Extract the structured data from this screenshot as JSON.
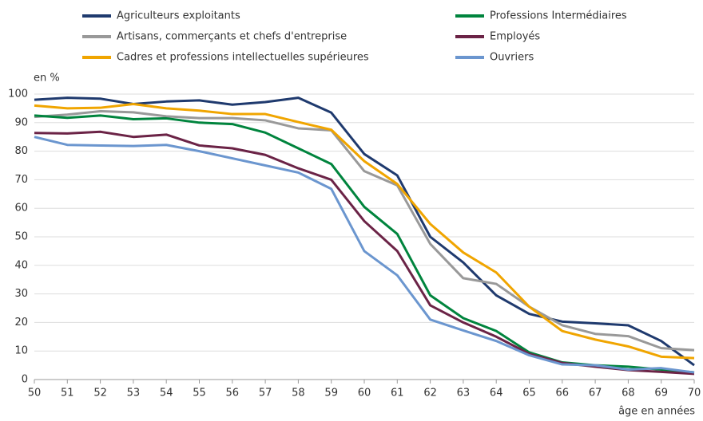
{
  "chart_data": {
    "type": "line",
    "y_label": "en %",
    "x_label": "âge en années",
    "x": [
      50,
      51,
      52,
      53,
      54,
      55,
      56,
      57,
      58,
      59,
      60,
      61,
      62,
      63,
      64,
      65,
      66,
      67,
      68,
      69,
      70
    ],
    "series": [
      {
        "name": "Agriculteurs exploitants",
        "color": "#1f3a6e",
        "values": [
          98,
          98.7,
          98.4,
          96.5,
          97.4,
          97.8,
          96.3,
          97.2,
          98.7,
          93.5,
          79,
          71.5,
          50,
          41,
          29.5,
          23,
          20.3,
          19.7,
          19,
          13.5,
          5
        ]
      },
      {
        "name": "Artisans, commerçants et chefs d'entreprise",
        "color": "#999999",
        "values": [
          92,
          92.8,
          94,
          93.6,
          92.2,
          91.6,
          91.6,
          90.8,
          88,
          87.3,
          73,
          68,
          47.5,
          35.5,
          33.5,
          25.5,
          19,
          16,
          15.2,
          11,
          10.3
        ]
      },
      {
        "name": "Cadres et professions intellectuelles supérieures",
        "color": "#f0a500",
        "values": [
          96,
          95,
          95.2,
          96.5,
          95,
          94.2,
          93,
          93,
          90.2,
          87.5,
          76.5,
          68.5,
          54.5,
          44.5,
          37.5,
          25.5,
          17,
          14,
          11.6,
          8,
          7.5
        ]
      },
      {
        "name": "Professions Intermédiaires",
        "color": "#00843d",
        "values": [
          92.5,
          91.7,
          92.5,
          91.2,
          91.5,
          90,
          89.5,
          86.5,
          81,
          75.5,
          60.5,
          51,
          29.5,
          21.5,
          17,
          9.5,
          6,
          5,
          4.5,
          3.5,
          2.5
        ]
      },
      {
        "name": "Employés",
        "color": "#6b2346",
        "values": [
          86.4,
          86.2,
          86.8,
          85,
          85.8,
          82,
          81,
          78.7,
          74,
          70,
          55.5,
          45,
          26,
          20,
          15,
          9,
          5.8,
          4.5,
          3.3,
          2.7,
          2
        ]
      },
      {
        "name": "Ouvriers",
        "color": "#6b96cf",
        "values": [
          85,
          82.2,
          82,
          81.8,
          82.2,
          80,
          77.5,
          75,
          72.5,
          66.8,
          45,
          36.5,
          21,
          17.2,
          13.5,
          8.5,
          5.3,
          5,
          3.5,
          4,
          2.5
        ]
      }
    ],
    "xlim": [
      50,
      70
    ],
    "xticks": [
      50,
      51,
      52,
      53,
      54,
      55,
      56,
      57,
      58,
      59,
      60,
      61,
      62,
      63,
      64,
      65,
      66,
      67,
      68,
      69,
      70
    ],
    "ylim": [
      0,
      100
    ],
    "yticks": [
      0,
      10,
      20,
      30,
      40,
      50,
      60,
      70,
      80,
      90,
      100
    ],
    "grid": true
  }
}
